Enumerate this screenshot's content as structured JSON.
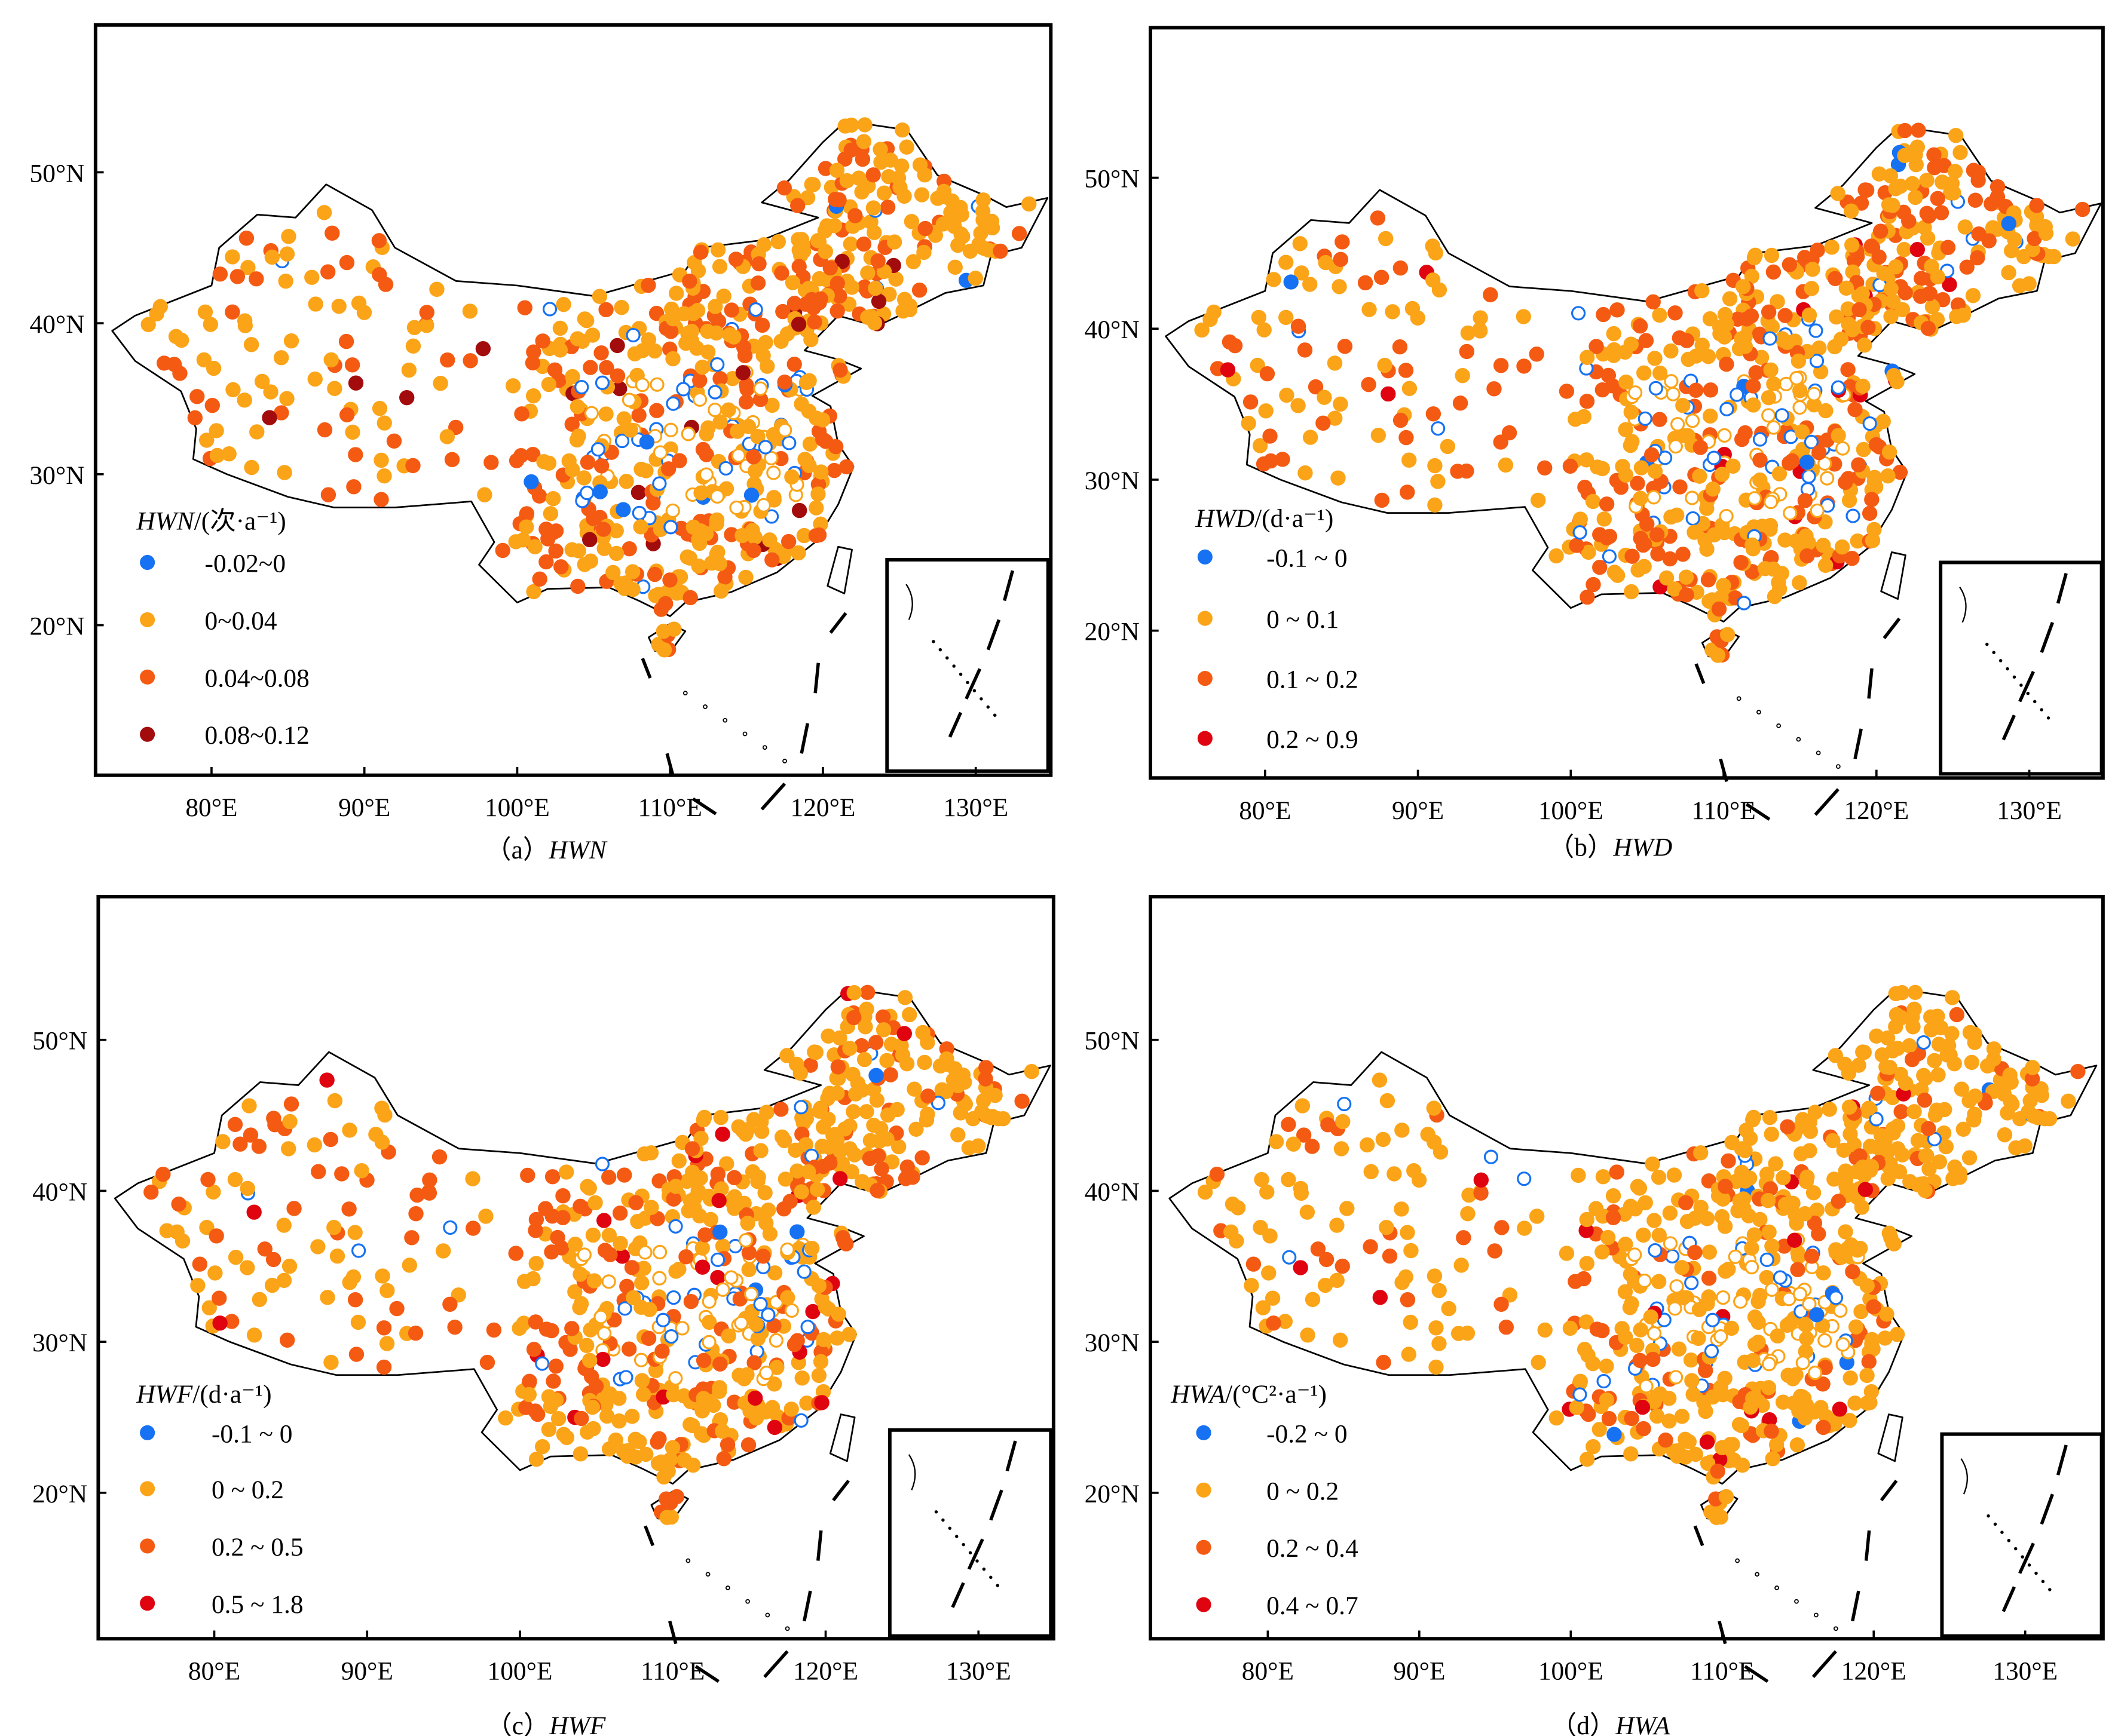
{
  "figure": {
    "lon_ticks": [
      "80°E",
      "90°E",
      "100°E",
      "110°E",
      "120°E",
      "130°E"
    ],
    "lat_ticks": [
      "50°N",
      "40°N",
      "30°N",
      "20°N"
    ],
    "lon_values": [
      80,
      90,
      100,
      110,
      120,
      130
    ],
    "lat_values": [
      50,
      40,
      30,
      20
    ]
  },
  "colors": {
    "blue": "#1672f2",
    "orange": "#fba418",
    "dark_orange": "#f55a12",
    "dark_red": "#a30c0c",
    "red": "#df0410"
  },
  "panels": [
    {
      "id": "a",
      "caption_prefix": "（a）",
      "caption_var": "HWN",
      "legend_var": "HWN",
      "legend_unit": "/(次·a⁻¹)",
      "legend": [
        {
          "label": "-0.02~0",
          "color": "#1672f2"
        },
        {
          "label": "0~0.04",
          "color": "#fba418"
        },
        {
          "label": "0.04~0.08",
          "color": "#f55a12"
        },
        {
          "label": "0.08~0.12",
          "color": "#a30c0c"
        }
      ],
      "class_shares": [
        0.06,
        0.62,
        0.29,
        0.03
      ]
    },
    {
      "id": "b",
      "caption_prefix": "（b）",
      "caption_var": "HWD",
      "legend_var": "HWD",
      "legend_unit": "/(d·a⁻¹)",
      "legend": [
        {
          "label": "-0.1 ~ 0",
          "color": "#1672f2"
        },
        {
          "label": "0 ~ 0.1",
          "color": "#fba418"
        },
        {
          "label": "0.1 ~ 0.2",
          "color": "#f55a12"
        },
        {
          "label": "0.2 ~ 0.9",
          "color": "#df0410"
        }
      ],
      "class_shares": [
        0.06,
        0.58,
        0.33,
        0.03
      ]
    },
    {
      "id": "c",
      "caption_prefix": "（c）",
      "caption_var": "HWF",
      "legend_var": "HWF",
      "legend_unit": "/(d·a⁻¹)",
      "legend": [
        {
          "label": "-0.1 ~ 0",
          "color": "#1672f2"
        },
        {
          "label": "0 ~ 0.2",
          "color": "#fba418"
        },
        {
          "label": "0.2 ~ 0.5",
          "color": "#f55a12"
        },
        {
          "label": "0.5 ~ 1.8",
          "color": "#df0410"
        }
      ],
      "class_shares": [
        0.06,
        0.64,
        0.27,
        0.03
      ]
    },
    {
      "id": "d",
      "caption_prefix": "（d）",
      "caption_var": "HWA",
      "legend_var": "HWA",
      "legend_unit": "/(°C²·a⁻¹)",
      "legend": [
        {
          "label": "-0.2 ~ 0",
          "color": "#1672f2"
        },
        {
          "label": "0 ~ 0.2",
          "color": "#fba418"
        },
        {
          "label": "0.2 ~ 0.4",
          "color": "#f55a12"
        },
        {
          "label": "0.4 ~ 0.7",
          "color": "#df0410"
        }
      ],
      "class_shares": [
        0.07,
        0.72,
        0.18,
        0.03
      ]
    }
  ]
}
